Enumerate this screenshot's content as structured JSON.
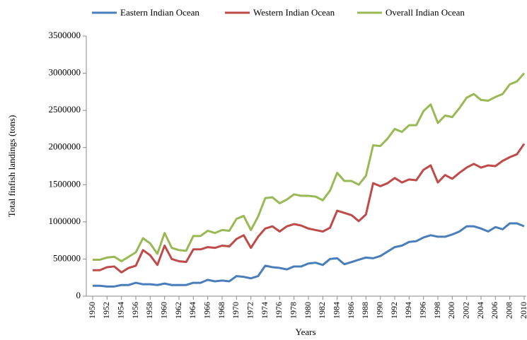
{
  "chart_data": {
    "type": "line",
    "x_label": "Years",
    "y_label": "Total finfish landings (tons)",
    "x": [
      1950,
      1951,
      1952,
      1953,
      1954,
      1955,
      1956,
      1957,
      1958,
      1959,
      1960,
      1961,
      1962,
      1963,
      1964,
      1965,
      1966,
      1967,
      1968,
      1969,
      1970,
      1971,
      1972,
      1973,
      1974,
      1975,
      1976,
      1977,
      1978,
      1979,
      1980,
      1981,
      1982,
      1983,
      1984,
      1985,
      1986,
      1987,
      1988,
      1989,
      1990,
      1991,
      1992,
      1993,
      1994,
      1995,
      1996,
      1997,
      1998,
      1999,
      2000,
      2001,
      2002,
      2003,
      2004,
      2005,
      2006,
      2007,
      2008,
      2009,
      2010
    ],
    "series": [
      {
        "name": "Eastern Indian Ocean",
        "color": "#4a7ebb",
        "values": [
          140000,
          140000,
          130000,
          130000,
          150000,
          150000,
          180000,
          160000,
          160000,
          150000,
          170000,
          150000,
          150000,
          150000,
          180000,
          180000,
          220000,
          200000,
          210000,
          200000,
          270000,
          260000,
          240000,
          270000,
          410000,
          390000,
          380000,
          360000,
          400000,
          400000,
          440000,
          450000,
          420000,
          500000,
          510000,
          430000,
          460000,
          490000,
          520000,
          510000,
          540000,
          600000,
          660000,
          680000,
          730000,
          740000,
          790000,
          820000,
          800000,
          800000,
          830000,
          870000,
          940000,
          940000,
          910000,
          870000,
          930000,
          900000,
          980000,
          980000,
          940000
        ]
      },
      {
        "name": "Western Indian Ocean",
        "color": "#be4b48",
        "values": [
          350000,
          350000,
          390000,
          400000,
          320000,
          380000,
          410000,
          620000,
          550000,
          420000,
          680000,
          500000,
          470000,
          460000,
          630000,
          630000,
          660000,
          650000,
          680000,
          670000,
          770000,
          820000,
          650000,
          800000,
          910000,
          940000,
          870000,
          940000,
          970000,
          950000,
          910000,
          890000,
          870000,
          920000,
          1150000,
          1120000,
          1090000,
          1010000,
          1100000,
          1520000,
          1480000,
          1520000,
          1590000,
          1530000,
          1570000,
          1560000,
          1700000,
          1760000,
          1530000,
          1630000,
          1580000,
          1660000,
          1730000,
          1780000,
          1730000,
          1760000,
          1750000,
          1820000,
          1870000,
          1910000,
          2050000
        ]
      },
      {
        "name": "Overall Indian Ocean",
        "color": "#98b954",
        "values": [
          490000,
          490000,
          520000,
          530000,
          470000,
          530000,
          590000,
          780000,
          710000,
          570000,
          850000,
          650000,
          620000,
          610000,
          810000,
          810000,
          880000,
          850000,
          890000,
          880000,
          1040000,
          1080000,
          890000,
          1070000,
          1320000,
          1330000,
          1250000,
          1300000,
          1370000,
          1350000,
          1350000,
          1340000,
          1290000,
          1420000,
          1660000,
          1550000,
          1550000,
          1500000,
          1620000,
          2030000,
          2020000,
          2120000,
          2250000,
          2210000,
          2300000,
          2300000,
          2490000,
          2580000,
          2330000,
          2430000,
          2410000,
          2530000,
          2670000,
          2720000,
          2640000,
          2630000,
          2680000,
          2720000,
          2850000,
          2890000,
          3000000
        ]
      }
    ],
    "xlim": [
      1950,
      2010
    ],
    "xticks": [
      1950,
      1952,
      1954,
      1956,
      1958,
      1960,
      1962,
      1964,
      1966,
      1968,
      1970,
      1972,
      1974,
      1976,
      1978,
      1980,
      1982,
      1984,
      1986,
      1988,
      1990,
      1992,
      1994,
      1996,
      1998,
      2000,
      2002,
      2004,
      2006,
      2008,
      2010
    ],
    "ylim": [
      0,
      3500000
    ],
    "yticks": [
      0,
      500000,
      1000000,
      1500000,
      2000000,
      2500000,
      3000000,
      3500000
    ],
    "grid": false,
    "legend": "top"
  }
}
